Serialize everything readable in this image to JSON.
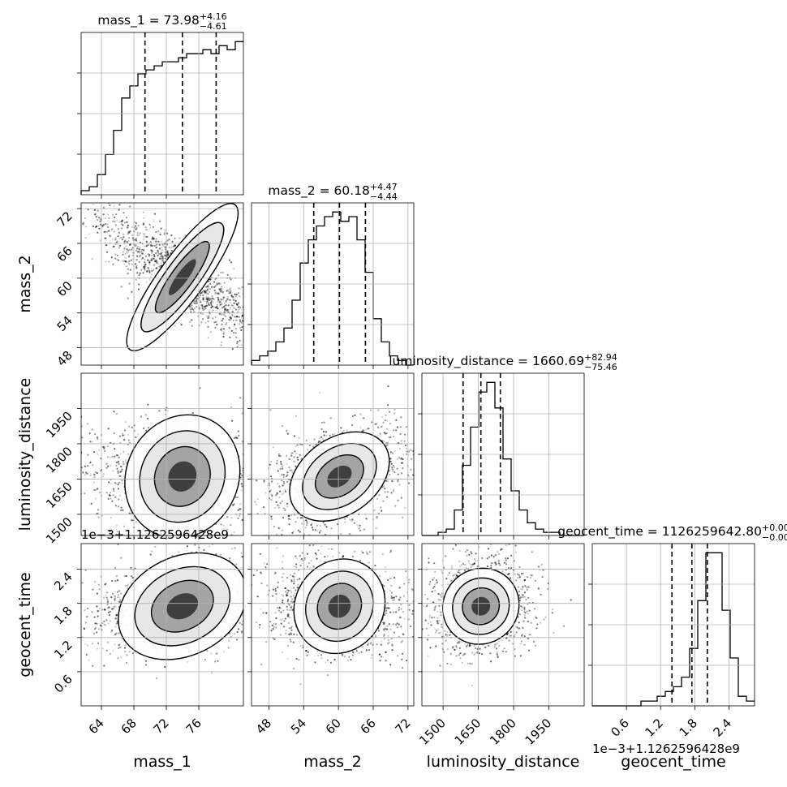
{
  "chart_data": {
    "type": "scatter",
    "subtype": "corner",
    "parameters": [
      "mass_1",
      "mass_2",
      "luminosity_distance",
      "geocent_time"
    ],
    "axis_labels": [
      "mass_1",
      "mass_2",
      "luminosity_distance",
      "geocent_time"
    ],
    "titles": [
      {
        "name": "mass_1",
        "median": "73.98",
        "plus": "+4.16",
        "minus": "−4.61"
      },
      {
        "name": "mass_2",
        "median": "60.18",
        "plus": "+4.47",
        "minus": "−4.44"
      },
      {
        "name": "luminosity_distance",
        "median": "1660.69",
        "plus": "+82.94",
        "minus": "−75.46"
      },
      {
        "name": "geocent_time",
        "median": "1126259642.80",
        "plus": "+0.00",
        "minus": "−0.00"
      }
    ],
    "offset_text": "1e−3+1.1262596428e9",
    "ranges": [
      [
        61.5,
        81.5
      ],
      [
        45,
        73
      ],
      [
        1410,
        2100
      ],
      [
        0.0,
        2.85
      ]
    ],
    "ticks": [
      [
        64,
        68,
        72,
        76
      ],
      [
        48,
        54,
        60,
        66,
        72
      ],
      [
        1500,
        1650,
        1800,
        1950
      ],
      [
        0.6,
        1.2,
        1.8,
        2.4
      ]
    ],
    "tick_labels": [
      [
        "64",
        "68",
        "72",
        "76"
      ],
      [
        "48",
        "54",
        "60",
        "66",
        "72"
      ],
      [
        "1500",
        "1650",
        "1800",
        "1950"
      ],
      [
        "0.6",
        "1.2",
        "1.8",
        "2.4"
      ]
    ],
    "quantiles": [
      [
        69.37,
        73.98,
        78.14
      ],
      [
        55.74,
        60.18,
        64.65
      ],
      [
        1585.23,
        1660.69,
        1743.63
      ],
      [
        1.4,
        1.75,
        2.02
      ]
    ],
    "histograms": [
      [
        1,
        2,
        5,
        10,
        16,
        24,
        27,
        30,
        31,
        32,
        33,
        33,
        34,
        35,
        35,
        36,
        35,
        37,
        36,
        38
      ],
      [
        1,
        2,
        3,
        5,
        8,
        14,
        22,
        27,
        30,
        32,
        33,
        31,
        32,
        27,
        20,
        10,
        5,
        2,
        1,
        0
      ],
      [
        0,
        0,
        1,
        2,
        8,
        22,
        34,
        45,
        48,
        40,
        24,
        14,
        8,
        4,
        2,
        1,
        1,
        0,
        0,
        0
      ],
      [
        0,
        0,
        0,
        0,
        0,
        0,
        1,
        1,
        2,
        3,
        4,
        6,
        12,
        22,
        32,
        32,
        20,
        10,
        2,
        1
      ]
    ],
    "correlations": {
      "0-1": -0.88,
      "0-2": -0.12,
      "1-2": 0.35,
      "0-3": 0.3,
      "1-3": -0.1,
      "2-3": 0.05
    },
    "grid": true
  }
}
